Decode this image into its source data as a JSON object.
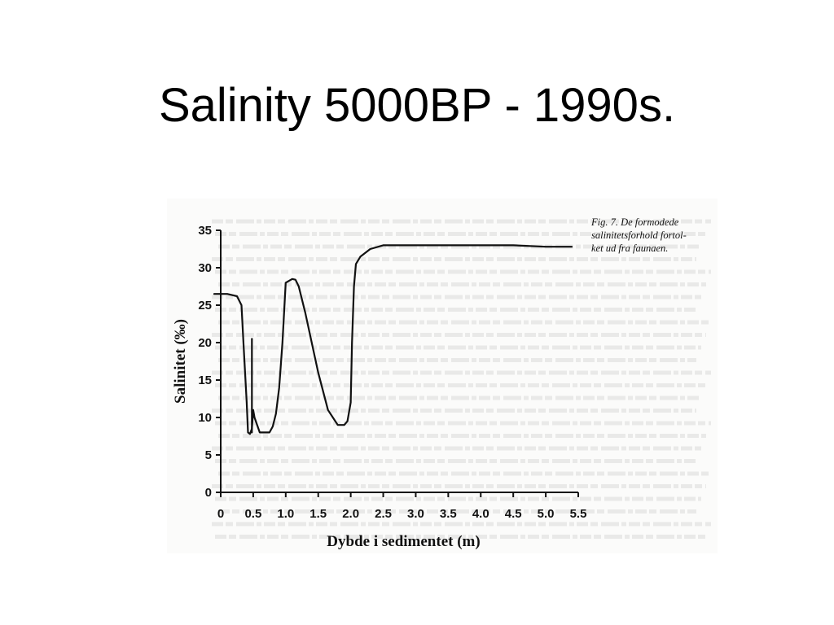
{
  "slide": {
    "title": "Salinity 5000BP - 1990s."
  },
  "figure": {
    "caption_lines": [
      "Fig. 7. De formodede",
      "salinitetsforhold fortol-",
      "ket ud fra faunaen."
    ]
  },
  "colors": {
    "background": "#ffffff",
    "scan_paper": "#fbfbfa",
    "ink": "#111111",
    "bleed_text": "#c9c9c9"
  },
  "chart_data": {
    "type": "line",
    "title": "",
    "xlabel": "Dybde i sedimentet (m)",
    "ylabel": "Salinitet (‰)",
    "xlim": [
      0,
      5.5
    ],
    "ylim": [
      0,
      35
    ],
    "xticks": [
      "0",
      "0.5",
      "1.0",
      "1.5",
      "2.0",
      "2.5",
      "3.0",
      "3.5",
      "4.0",
      "4.5",
      "5.0",
      "5.5"
    ],
    "yticks": [
      "0",
      "5",
      "10",
      "15",
      "20",
      "25",
      "30",
      "35"
    ],
    "grid": false,
    "series": [
      {
        "x": [
          -0.1,
          0.1,
          0.25,
          0.32,
          0.35,
          0.4,
          0.42,
          0.45,
          0.48,
          0.5,
          0.52,
          0.6,
          0.75,
          0.8,
          0.85,
          0.9,
          0.95,
          1.0,
          1.1,
          1.15,
          1.2,
          1.3,
          1.5,
          1.65,
          1.8,
          1.9,
          1.95,
          2.0,
          2.02,
          2.05,
          2.08,
          2.15,
          2.3,
          2.5,
          3.0,
          3.5,
          4.0,
          4.5,
          5.0,
          5.4
        ],
        "y": [
          26.5,
          26.5,
          26.2,
          25.0,
          20.0,
          12.0,
          8.0,
          7.8,
          8.5,
          11.0,
          10.0,
          8.0,
          8.0,
          8.8,
          10.5,
          14.0,
          20.0,
          28.0,
          28.5,
          28.4,
          27.5,
          24.0,
          16.0,
          11.0,
          9.0,
          9.0,
          9.5,
          12.0,
          20.0,
          27.5,
          30.5,
          31.5,
          32.5,
          33.0,
          33.0,
          33.0,
          33.0,
          33.0,
          32.8,
          32.8
        ]
      },
      {
        "x": [
          0.48,
          0.48
        ],
        "y": [
          8.0,
          20.5
        ]
      }
    ]
  }
}
